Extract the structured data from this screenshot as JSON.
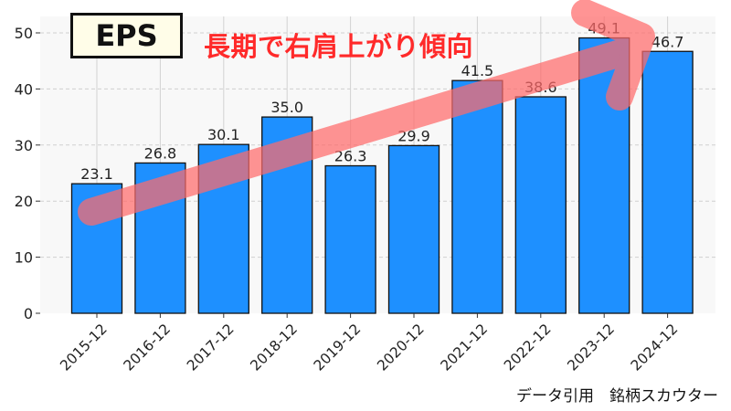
{
  "chart_data": {
    "type": "bar",
    "categories": [
      "2015-12",
      "2016-12",
      "2017-12",
      "2018-12",
      "2019-12",
      "2020-12",
      "2021-12",
      "2022-12",
      "2023-12",
      "2024-12"
    ],
    "values": [
      23.1,
      26.8,
      30.1,
      35.0,
      26.3,
      29.9,
      41.5,
      38.6,
      49.1,
      46.7
    ],
    "value_labels": [
      "23.1",
      "26.8",
      "30.1",
      "35.0",
      "26.3",
      "29.9",
      "41.5",
      "38.6",
      "49.1",
      "46.7"
    ],
    "yticks": [
      0,
      10,
      20,
      30,
      40,
      50
    ],
    "ylim": [
      0,
      52
    ],
    "grid": true,
    "colors": {
      "bar": "#1e90ff",
      "bar_edge": "#111111",
      "trend_arrow": "#ff6b6b",
      "headline": "#ff2a2a"
    }
  },
  "badge": {
    "label": "EPS"
  },
  "headline": "長期で右肩上がり傾向",
  "credit": "データ引用　銘柄スカウター"
}
